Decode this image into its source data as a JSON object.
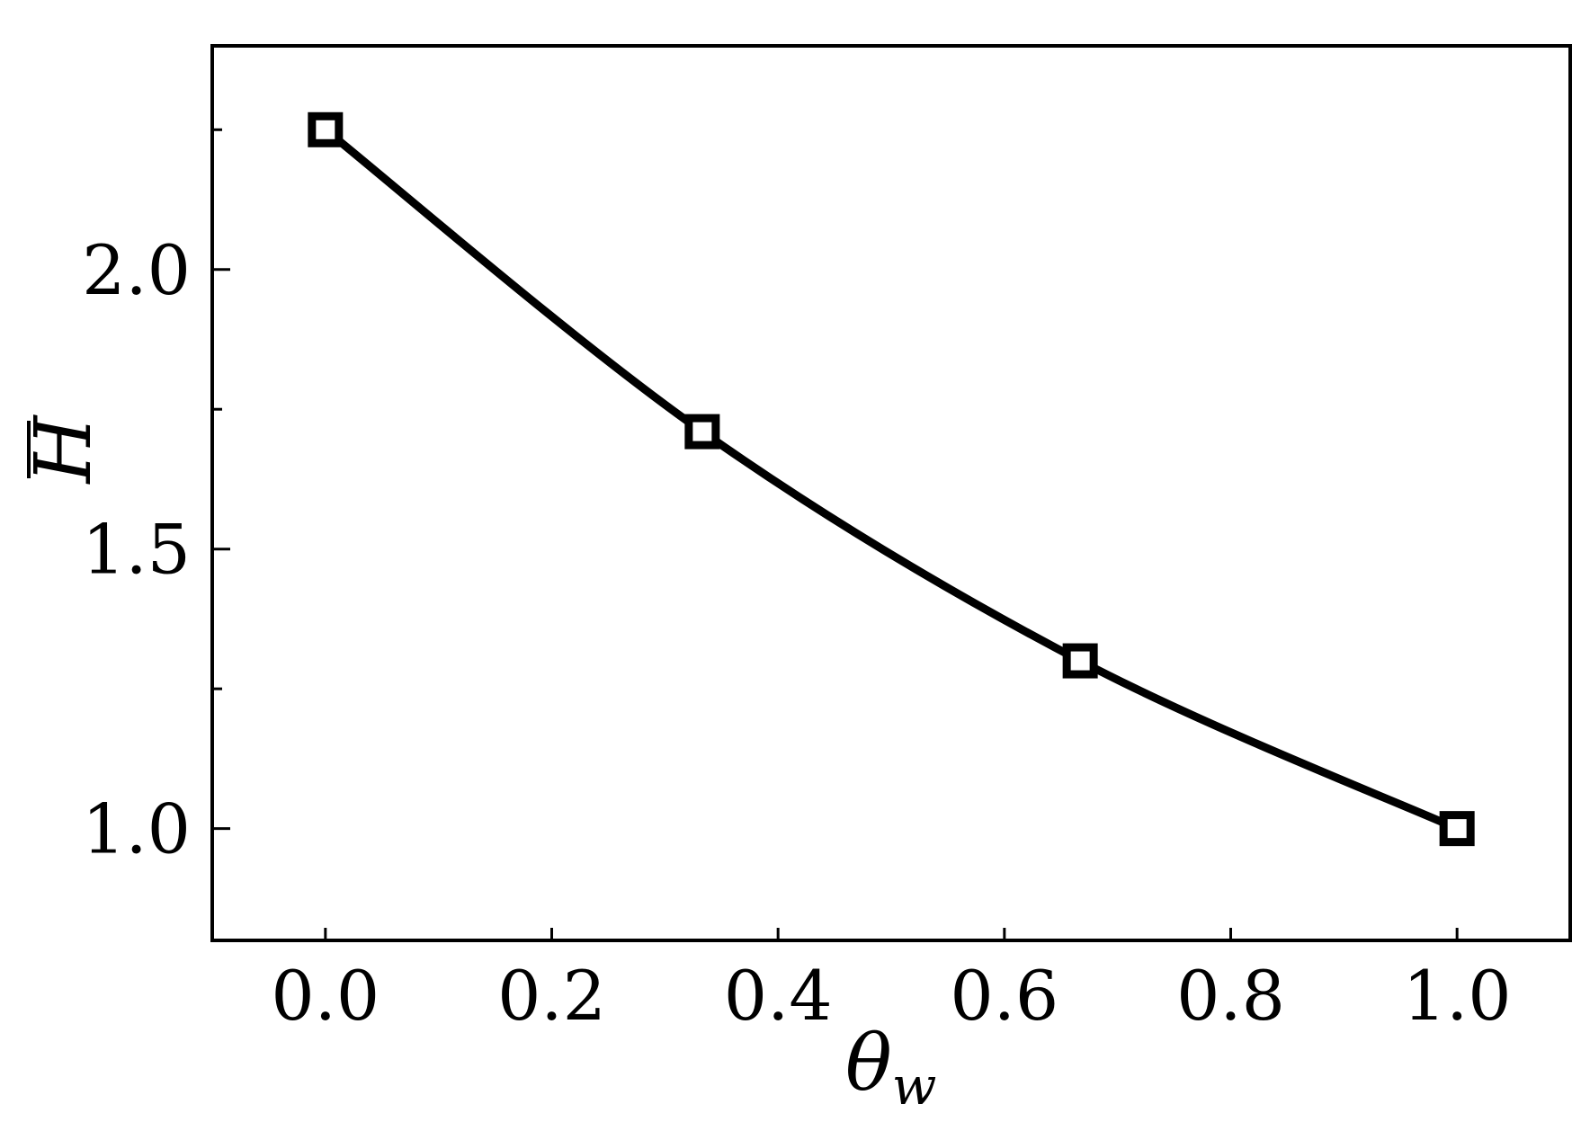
{
  "chart_data": {
    "type": "line",
    "x": [
      0.0,
      0.333,
      0.667,
      1.0
    ],
    "series": [
      {
        "values": [
          2.25,
          1.71,
          1.3,
          1.0
        ]
      }
    ],
    "xlabel": {
      "base": "θ",
      "sub": "w"
    },
    "ylabel": "H",
    "xlim": [
      -0.1,
      1.1
    ],
    "ylim": [
      0.8,
      2.4
    ],
    "x_ticks": [
      0.0,
      0.2,
      0.4,
      0.6,
      0.8,
      1.0
    ],
    "x_tick_labels": [
      "0.0",
      "0.2",
      "0.4",
      "0.6",
      "0.8",
      "1.0"
    ],
    "y_ticks": [
      1.0,
      1.5,
      2.0
    ],
    "y_tick_labels": [
      "1.0",
      "1.5",
      "2.0"
    ],
    "y_minor_ticks": [
      1.25,
      1.75,
      2.25
    ],
    "grid": false,
    "marker": "open-square",
    "line_color": "#000000"
  }
}
